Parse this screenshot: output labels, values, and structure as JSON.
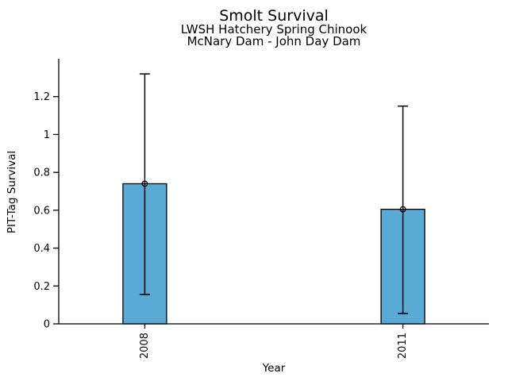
{
  "figure": {
    "background": "#ffffff"
  },
  "chart_data": {
    "type": "bar",
    "title": "Smolt Survival",
    "subtitle_line1": "LWSH Hatchery Spring Chinook",
    "subtitle_line2": "McNary Dam - John Day Dam",
    "xlabel": "Year",
    "ylabel": "PIT-Tag Survival",
    "categories": [
      "2008",
      "2011"
    ],
    "values": [
      0.74,
      0.605
    ],
    "error_low": [
      0.155,
      0.055
    ],
    "error_high": [
      1.32,
      1.15
    ],
    "marker": "open-circle",
    "yticks": [
      0,
      0.2,
      0.4,
      0.6,
      0.8,
      1,
      1.2
    ],
    "ytick_labels": [
      "0",
      "0.2",
      "0.4",
      "0.6",
      "0.8",
      "1",
      "1.2"
    ],
    "ylim": [
      0,
      1.4
    ],
    "grid": false,
    "legend": "none",
    "bar_color": "#5aaad6",
    "edge_color": "#000000",
    "text_color": "#000000"
  }
}
